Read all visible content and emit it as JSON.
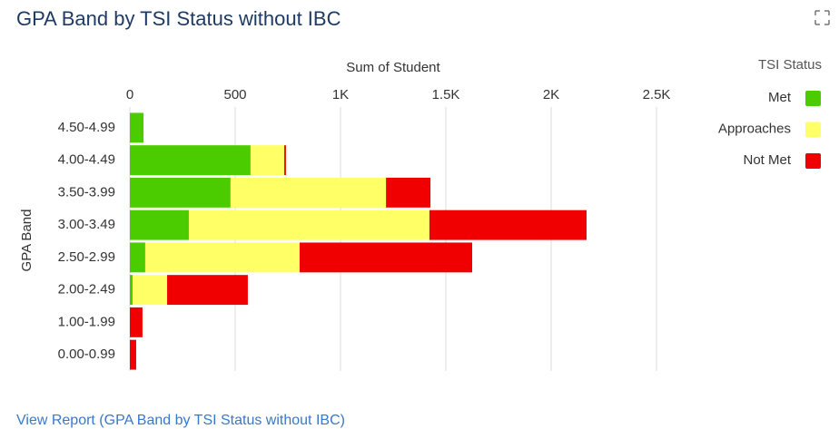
{
  "chart_data": {
    "type": "bar",
    "orientation": "horizontal",
    "stacked": true,
    "title": "GPA Band by TSI Status without IBC",
    "x_label": "Sum of Student",
    "y_label": "GPA Band",
    "legend_title": "TSI Status",
    "legend_position": "right",
    "categories": [
      "4.50-4.99",
      "4.00-4.49",
      "3.50-3.99",
      "3.00-3.49",
      "2.50-2.99",
      "2.00-2.49",
      "1.00-1.99",
      "0.00-0.99"
    ],
    "series": [
      {
        "name": "Met",
        "color": "#4bcc00",
        "values": [
          65,
          573,
          478,
          280,
          73,
          13,
          0,
          0
        ]
      },
      {
        "name": "Approaches",
        "color": "#ffff66",
        "values": [
          0,
          160,
          738,
          1142,
          733,
          164,
          0,
          0
        ]
      },
      {
        "name": "Not Met",
        "color": "#f00000",
        "values": [
          0,
          8,
          211,
          746,
          819,
          383,
          60,
          30
        ]
      }
    ],
    "xlim": [
      0,
      2500
    ],
    "xticks": [
      0,
      500,
      {
        "value": 1000,
        "label": "1K"
      },
      {
        "value": 1500,
        "label": "1.5K"
      },
      {
        "value": 2000,
        "label": "2K"
      },
      {
        "value": 2500,
        "label": "2.5K"
      }
    ],
    "grid": true
  },
  "link": "View Report (GPA Band by TSI Status without IBC)"
}
